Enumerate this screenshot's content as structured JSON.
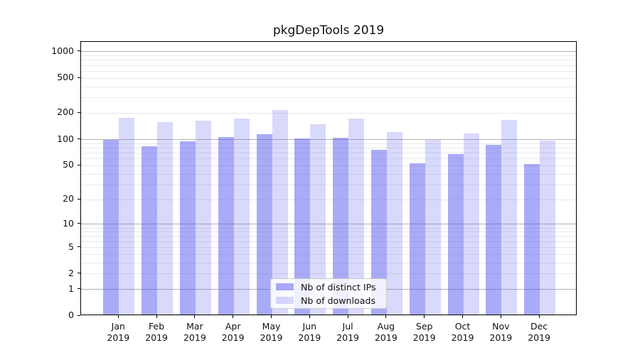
{
  "chart_data": {
    "type": "bar",
    "title": "pkgDepTools 2019",
    "yscale": "log1p",
    "categories": [
      "Jan",
      "Feb",
      "Mar",
      "Apr",
      "May",
      "Jun",
      "Jul",
      "Aug",
      "Sep",
      "Oct",
      "Nov",
      "Dec"
    ],
    "year": "2019",
    "series": [
      {
        "name": "Nb of distinct IPs",
        "color": "rgba(85,87,240,0.5)",
        "values": [
          96,
          81,
          92,
          102,
          111,
          100,
          101,
          73,
          51,
          66,
          83,
          50
        ]
      },
      {
        "name": "Nb of downloads",
        "color": "rgba(85,87,240,0.225)",
        "values": [
          171,
          152,
          157,
          166,
          208,
          145,
          167,
          118,
          95,
          114,
          161,
          94
        ]
      }
    ],
    "yticks": [
      1000,
      500,
      200,
      100,
      50,
      20,
      10,
      5,
      2,
      1,
      0
    ],
    "ylim": [
      0,
      1300
    ],
    "grid": {
      "major": [
        1,
        10,
        100,
        1000
      ],
      "minor_per_decade": [
        2,
        3,
        4,
        5,
        6,
        7,
        8,
        9
      ]
    },
    "legend_position": "lower center",
    "colors": {
      "bar_distinct_ips": "#a6a8f7",
      "bar_downloads": "#d9daf8",
      "grid_major": "#b0b0b0",
      "grid_minor": "#e9e9e9"
    }
  }
}
